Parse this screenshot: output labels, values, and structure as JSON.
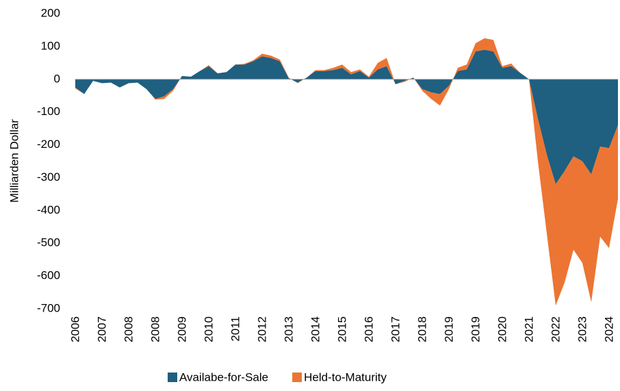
{
  "chart_data": {
    "type": "stacked_area",
    "y_label": "Milliarden Dollar",
    "categories": [
      "2006",
      null,
      null,
      "2007",
      null,
      null,
      "2008",
      null,
      null,
      "2008",
      null,
      null,
      "2009",
      null,
      null,
      "2010",
      null,
      null,
      "2011",
      null,
      null,
      "2012",
      null,
      null,
      "2013",
      null,
      null,
      "2014",
      null,
      null,
      "2015",
      null,
      null,
      "2016",
      null,
      null,
      "2017",
      null,
      null,
      "2018",
      null,
      null,
      "2019",
      null,
      null,
      "2019",
      null,
      null,
      "2020",
      null,
      null,
      "2021",
      null,
      null,
      "2022",
      null,
      null,
      "2023",
      null,
      null,
      "2024",
      null
    ],
    "series": [
      {
        "name": "Availabe-for-Sale",
        "color": "#1f5f80",
        "values": [
          -25,
          -45,
          -5,
          -12,
          -10,
          -25,
          -12,
          -10,
          -30,
          -60,
          -52,
          -30,
          10,
          8,
          25,
          40,
          18,
          22,
          45,
          45,
          55,
          70,
          65,
          55,
          3,
          -10,
          5,
          25,
          25,
          28,
          35,
          15,
          25,
          5,
          30,
          40,
          -15,
          -5,
          5,
          -30,
          -40,
          -45,
          -20,
          25,
          30,
          85,
          90,
          85,
          35,
          40,
          20,
          0,
          -120,
          -230,
          -320,
          -280,
          -235,
          -250,
          -290,
          -205,
          -210,
          -140
        ]
      },
      {
        "name": "Held-to-Maturity",
        "color": "#ec7533",
        "values": [
          -3,
          0,
          0,
          0,
          0,
          0,
          0,
          0,
          0,
          -2,
          -8,
          -5,
          0,
          0,
          0,
          3,
          0,
          0,
          0,
          2,
          3,
          8,
          7,
          5,
          2,
          -2,
          0,
          3,
          3,
          7,
          10,
          7,
          5,
          3,
          20,
          25,
          0,
          -3,
          0,
          -5,
          -20,
          -35,
          -10,
          10,
          15,
          25,
          35,
          35,
          5,
          8,
          0,
          0,
          -130,
          -240,
          -370,
          -340,
          -285,
          -310,
          -390,
          -275,
          -305,
          -225
        ]
      }
    ],
    "ylim": [
      -700,
      200
    ],
    "yticks": [
      -700,
      -600,
      -500,
      -400,
      -300,
      -200,
      -100,
      0,
      100,
      200
    ],
    "legend": "bottom"
  }
}
